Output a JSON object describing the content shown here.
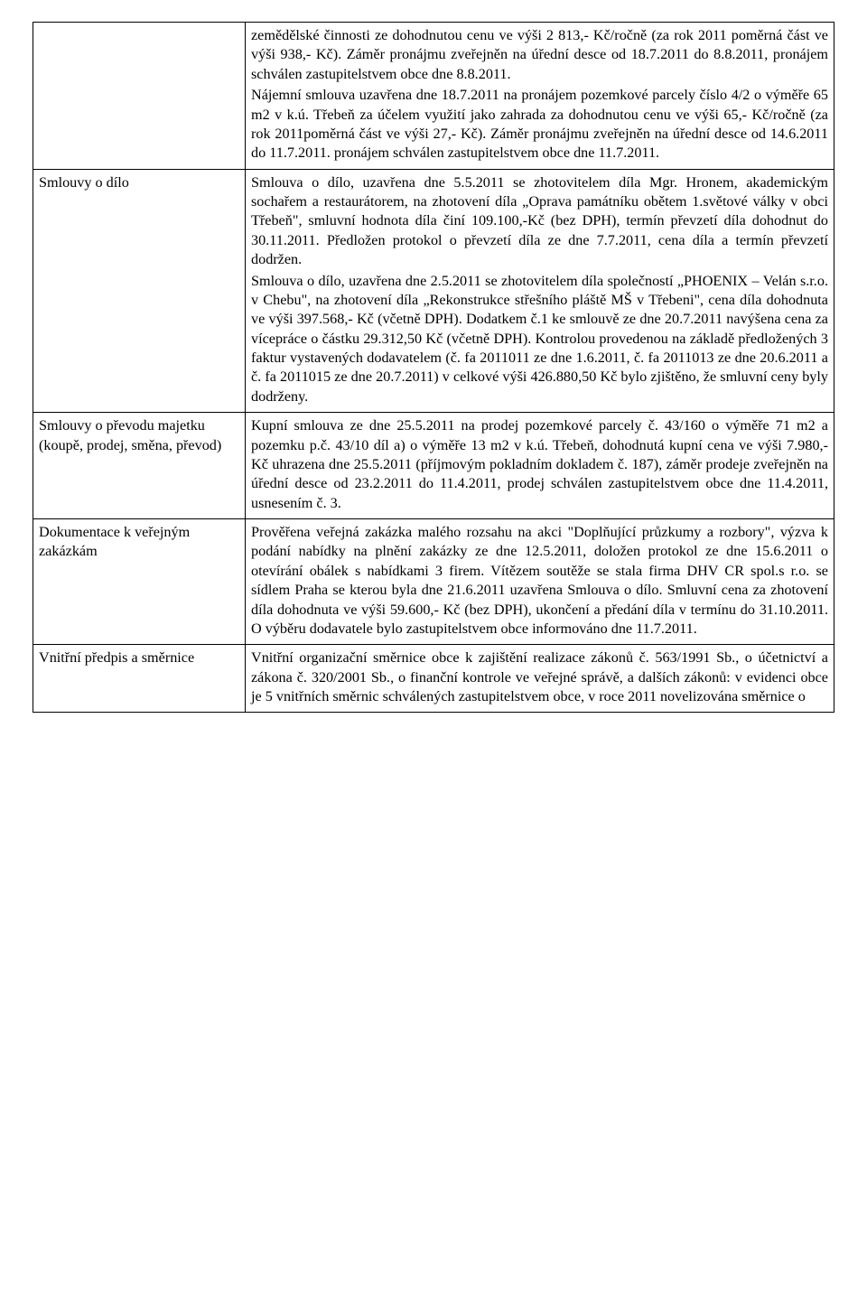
{
  "table": {
    "rows": [
      {
        "label": "",
        "content": [
          "zemědělské činnosti ze dohodnutou cenu ve výši 2 813,- Kč/ročně (za rok 2011 poměrná část ve výši 938,- Kč). Záměr pronájmu zveřejněn na úřední desce od 18.7.2011 do 8.8.2011, pronájem schválen zastupitelstvem obce dne 8.8.2011.",
          "Nájemní smlouva uzavřena dne 18.7.2011 na pronájem pozemkové parcely číslo 4/2 o výměře 65 m2 v k.ú. Třebeň za účelem využití jako zahrada za dohodnutou cenu ve výši 65,- Kč/ročně (za rok 2011poměrná část ve výši 27,- Kč). Záměr pronájmu zveřejněn na úřední desce od 14.6.2011 do 11.7.2011. pronájem schválen zastupitelstvem obce dne 11.7.2011."
        ]
      },
      {
        "label": "Smlouvy o dílo",
        "content": [
          "Smlouva o dílo, uzavřena dne 5.5.2011 se zhotovitelem díla Mgr. Hronem, akademickým sochařem a restaurátorem, na zhotovení díla „Oprava památníku obětem 1.světové války v obci Třebeň\", smluvní hodnota díla činí 109.100,-Kč (bez DPH), termín převzetí díla dohodnut do 30.11.2011. Předložen protokol o převzetí díla ze dne 7.7.2011, cena díla a termín převzetí dodržen.",
          "Smlouva o dílo, uzavřena dne 2.5.2011 se zhotovitelem díla společností „PHOENIX – Velán s.r.o. v Chebu\", na zhotovení díla „Rekonstrukce střešního pláště MŠ v Třebeni\", cena díla dohodnuta ve výši 397.568,- Kč (včetně DPH). Dodatkem č.1 ke smlouvě ze dne 20.7.2011 navýšena cena za vícepráce o částku 29.312,50 Kč (včetně DPH). Kontrolou provedenou na základě předložených 3 faktur vystavených dodavatelem (č. fa 2011011 ze dne 1.6.2011, č. fa 2011013 ze dne 20.6.2011 a č. fa 2011015 ze dne 20.7.2011) v celkové výši 426.880,50 Kč bylo zjištěno, že smluvní ceny byly dodrženy."
        ]
      },
      {
        "label": "Smlouvy o převodu majetku (koupě, prodej, směna, převod)",
        "content": [
          "Kupní smlouva ze dne 25.5.2011 na prodej pozemkové parcely č. 43/160 o výměře 71 m2 a pozemku p.č. 43/10 díl a) o výměře 13 m2 v k.ú. Třebeň, dohodnutá kupní cena ve výši 7.980,- Kč uhrazena dne 25.5.2011 (příjmovým pokladním dokladem č. 187), záměr prodeje zveřejněn na úřední desce od 23.2.2011 do 11.4.2011, prodej schválen zastupitelstvem obce dne 11.4.2011, usnesením č. 3."
        ]
      },
      {
        "label": "Dokumentace k veřejným zakázkám",
        "content": [
          "Prověřena veřejná zakázka malého rozsahu na akci \"Doplňující průzkumy a rozbory\", výzva k podání nabídky na plnění zakázky ze dne 12.5.2011, doložen protokol ze dne 15.6.2011 o otevírání obálek s nabídkami 3 firem. Vítězem soutěže se stala firma DHV CR spol.s r.o. se sídlem Praha se kterou byla dne 21.6.2011 uzavřena Smlouva o dílo. Smluvní cena za zhotovení díla dohodnuta ve výši 59.600,- Kč (bez DPH), ukončení a předání díla v termínu do 31.10.2011. O výběru dodavatele bylo zastupitelstvem obce informováno dne 11.7.2011."
        ]
      },
      {
        "label": "Vnitřní předpis a směrnice",
        "content": [
          "Vnitřní organizační směrnice obce k zajištění realizace zákonů č. 563/1991 Sb., o účetnictví a zákona č. 320/2001 Sb., o finanční kontrole ve veřejné správě, a dalších zákonů: v evidenci obce je 5 vnitřních směrnic schválených zastupitelstvem obce, v roce 2011 novelizována směrnice o"
        ]
      }
    ]
  }
}
